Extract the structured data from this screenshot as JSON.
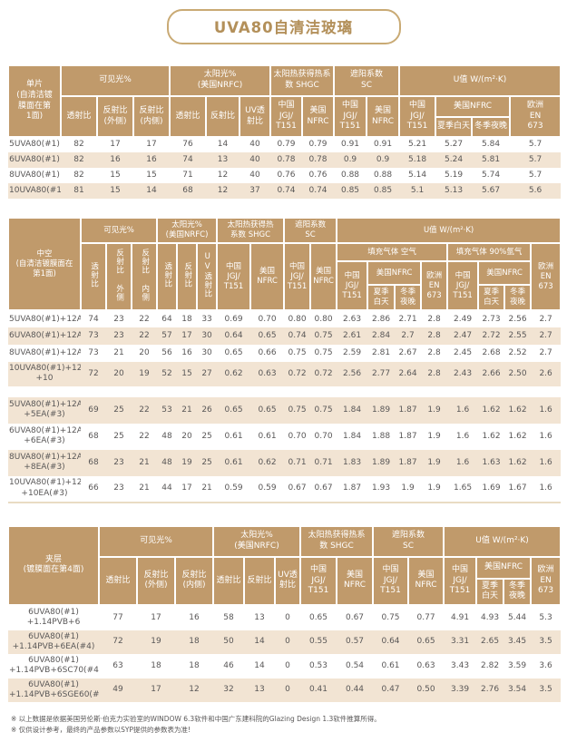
{
  "title": "UVA80自清洁玻璃",
  "colors": {
    "accent": "#b3905a",
    "accent_border": "#c9aa74",
    "header_bg": "#c09a6b",
    "stripe": "#f2e4d3"
  },
  "labels": {
    "visible_pct": "可见光%",
    "solar_2l": "太阳光%\n(美国NRFC)",
    "shgc_t1": "太阳热获得热系\n数 SHGC",
    "shgc_t2": "太阳热获得热\n系数 SHGC",
    "sc_2l": "遮阳系数\nSC",
    "u_value": "U值 W/(m²·K)",
    "trans": "透射比",
    "refl": "反射比",
    "refl_out": "反射比\n(外侧)",
    "refl_in": "反射比\n(内侧)",
    "uv_2l": "UV透\n射比",
    "refl_out_v": "反射比 外侧",
    "refl_in_v": "反射比 内侧",
    "uv_v": "UV透射比",
    "china_jgj": "中国\nJGJ/\nT151",
    "usa_2l": "美国\nNFRC",
    "usa_inline": "美国NFRC",
    "summer_day": "夏季白天",
    "winter_night": "冬季夜晚",
    "summer_2l": "夏季\n白天",
    "winter_2l": "冬季\n夜晚",
    "europe": "欧洲\nEN\n673",
    "gas_air": "填充气体 空气",
    "gas_argon": "填充气体 90%氩气"
  },
  "table_single": {
    "row_header": "单片\n(自清洁镀\n膜面在第\n1面)",
    "rows": [
      [
        "5UVA80(#1)",
        "82",
        "17",
        "17",
        "76",
        "14",
        "40",
        "0.79",
        "0.79",
        "0.91",
        "0.91",
        "5.21",
        "5.27",
        "5.84",
        "5.7"
      ],
      [
        "6UVA80(#1)",
        "82",
        "16",
        "16",
        "74",
        "13",
        "40",
        "0.78",
        "0.78",
        "0.9",
        "0.9",
        "5.18",
        "5.24",
        "5.81",
        "5.7"
      ],
      [
        "8UVA80(#1)",
        "82",
        "15",
        "15",
        "71",
        "12",
        "40",
        "0.76",
        "0.76",
        "0.88",
        "0.88",
        "5.14",
        "5.19",
        "5.74",
        "5.7"
      ],
      [
        "10UVA80(#1)",
        "81",
        "15",
        "14",
        "68",
        "12",
        "37",
        "0.74",
        "0.74",
        "0.85",
        "0.85",
        "5.1",
        "5.13",
        "5.67",
        "5.6"
      ]
    ]
  },
  "table_insulated": {
    "row_header": "中空\n(自清洁镀膜面在\n第1面)",
    "groups": [
      {
        "rows": [
          [
            "5UVA80(#1)+12A+5",
            "74",
            "23",
            "22",
            "64",
            "18",
            "33",
            "0.69",
            "0.70",
            "0.80",
            "0.80",
            "2.63",
            "2.86",
            "2.71",
            "2.8",
            "2.49",
            "2.73",
            "2.56",
            "2.7"
          ],
          [
            "6UVA80(#1)+12A+6",
            "73",
            "23",
            "22",
            "57",
            "17",
            "30",
            "0.64",
            "0.65",
            "0.74",
            "0.75",
            "2.61",
            "2.84",
            "2.7",
            "2.8",
            "2.47",
            "2.72",
            "2.55",
            "2.7"
          ],
          [
            "8UVA80(#1)+12A+8",
            "73",
            "21",
            "20",
            "56",
            "16",
            "30",
            "0.65",
            "0.66",
            "0.75",
            "0.75",
            "2.59",
            "2.81",
            "2.67",
            "2.8",
            "2.45",
            "2.68",
            "2.52",
            "2.7"
          ],
          [
            "10UVA80(#1)+12A\n+10",
            "72",
            "20",
            "19",
            "52",
            "15",
            "27",
            "0.62",
            "0.63",
            "0.72",
            "0.72",
            "2.56",
            "2.77",
            "2.64",
            "2.8",
            "2.43",
            "2.66",
            "2.50",
            "2.6"
          ]
        ]
      },
      {
        "rows": [
          [
            "5UVA80(#1)+12A\n+5EA(#3)",
            "69",
            "25",
            "22",
            "53",
            "21",
            "26",
            "0.65",
            "0.65",
            "0.75",
            "0.75",
            "1.84",
            "1.89",
            "1.87",
            "1.9",
            "1.6",
            "1.62",
            "1.62",
            "1.6"
          ],
          [
            "6UVA80(#1)+12A\n+6EA(#3)",
            "68",
            "25",
            "22",
            "48",
            "20",
            "25",
            "0.61",
            "0.61",
            "0.70",
            "0.70",
            "1.84",
            "1.88",
            "1.87",
            "1.9",
            "1.6",
            "1.62",
            "1.62",
            "1.6"
          ],
          [
            "8UVA80(#1)+12A\n+8EA(#3)",
            "68",
            "23",
            "21",
            "48",
            "19",
            "25",
            "0.61",
            "0.62",
            "0.71",
            "0.71",
            "1.83",
            "1.89",
            "1.87",
            "1.9",
            "1.6",
            "1.63",
            "1.62",
            "1.6"
          ],
          [
            "10UVA80(#1)+12A\n+10EA(#3)",
            "66",
            "23",
            "21",
            "44",
            "17",
            "21",
            "0.59",
            "0.59",
            "0.67",
            "0.67",
            "1.87",
            "1.93",
            "1.9",
            "1.9",
            "1.65",
            "1.69",
            "1.67",
            "1.6"
          ]
        ]
      }
    ]
  },
  "table_laminated": {
    "row_header": "夹层\n(镀膜面在第4面)",
    "rows": [
      [
        "6UVA80(#1)\n+1.14PVB+6",
        "77",
        "17",
        "16",
        "58",
        "13",
        "0",
        "0.65",
        "0.67",
        "0.75",
        "0.77",
        "4.91",
        "4.93",
        "5.44",
        "5.3"
      ],
      [
        "6UVA80(#1)\n+1.14PVB+6EA(#4)",
        "72",
        "19",
        "18",
        "50",
        "14",
        "0",
        "0.55",
        "0.57",
        "0.64",
        "0.65",
        "3.31",
        "2.65",
        "3.45",
        "3.5"
      ],
      [
        "6UVA80(#1)\n+1.14PVB+6SC70(#4)",
        "63",
        "18",
        "18",
        "46",
        "14",
        "0",
        "0.53",
        "0.54",
        "0.61",
        "0.63",
        "3.43",
        "2.82",
        "3.59",
        "3.6"
      ],
      [
        "6UVA80(#1)\n+1.14PVB+6SGE60(#4)",
        "49",
        "17",
        "12",
        "32",
        "13",
        "0",
        "0.41",
        "0.44",
        "0.47",
        "0.50",
        "3.39",
        "2.76",
        "3.54",
        "3.5"
      ]
    ]
  },
  "footnotes": [
    "※ 以上数据是依据美国劳伦斯·伯克力实验室的WINDOW 6.3软件和中国广东建科院的Glazing Design 1.3软件推算所得。",
    "※ 仅供设计参考，最终的产品参数以SYP提供的参数表为准!"
  ]
}
